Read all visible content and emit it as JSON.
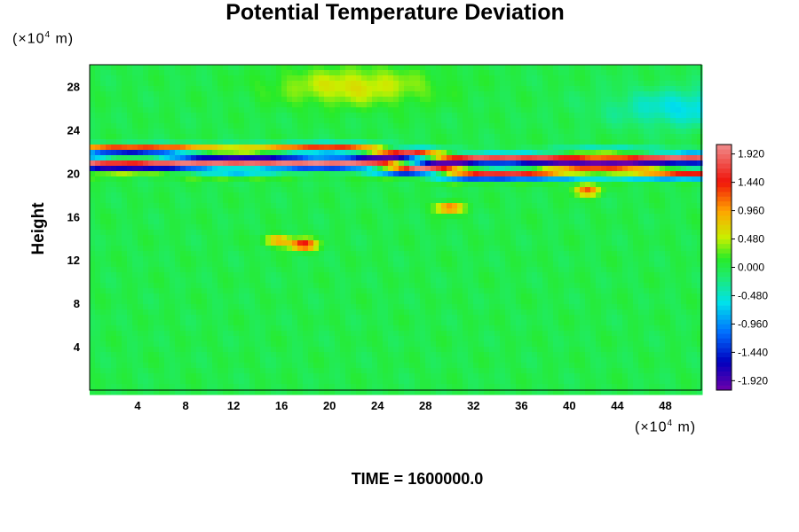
{
  "chart_data": {
    "type": "heatmap",
    "title": "Potential Temperature Deviation",
    "ylabel": "Height",
    "y_unit": {
      "prefix": "(×10",
      "exp": "4",
      "suffix": " m)"
    },
    "x_unit": {
      "prefix": "(×10",
      "exp": "4",
      "suffix": " m)"
    },
    "xlim": [
      0,
      51
    ],
    "ylim": [
      0,
      30
    ],
    "x_ticks": [
      4,
      8,
      12,
      16,
      20,
      24,
      28,
      32,
      36,
      40,
      44,
      48
    ],
    "y_ticks": [
      4,
      8,
      12,
      16,
      20,
      24,
      28
    ],
    "colorbar": {
      "range": [
        -2.08,
        2.08
      ],
      "labels": [
        "1.920",
        "1.440",
        "0.960",
        "0.480",
        "0.000",
        "-0.480",
        "-0.960",
        "-1.440",
        "-1.920"
      ],
      "label_values": [
        1.92,
        1.44,
        0.96,
        0.48,
        0.0,
        -0.48,
        -0.96,
        -1.44,
        -1.92
      ]
    },
    "features": [
      {
        "kind": "band",
        "height_range": [
          19.5,
          22.5
        ],
        "value_range": [
          -2.0,
          2.0
        ]
      },
      {
        "kind": "spot",
        "x": 17.8,
        "y": 13.4,
        "value": 1.6
      },
      {
        "kind": "spot",
        "x": 30,
        "y": 16.8,
        "value": 1.3
      },
      {
        "kind": "spot",
        "x": 41.5,
        "y": 18.4,
        "value": 1.2
      },
      {
        "kind": "spot",
        "x": 15.7,
        "y": 13.8,
        "value": 1.0
      },
      {
        "kind": "region",
        "x": 22,
        "y": 28,
        "value": 0.6
      },
      {
        "kind": "region",
        "x": 50,
        "y": 26,
        "value": -0.6
      }
    ]
  },
  "footer": {
    "time_label": "TIME = 1600000.0"
  }
}
